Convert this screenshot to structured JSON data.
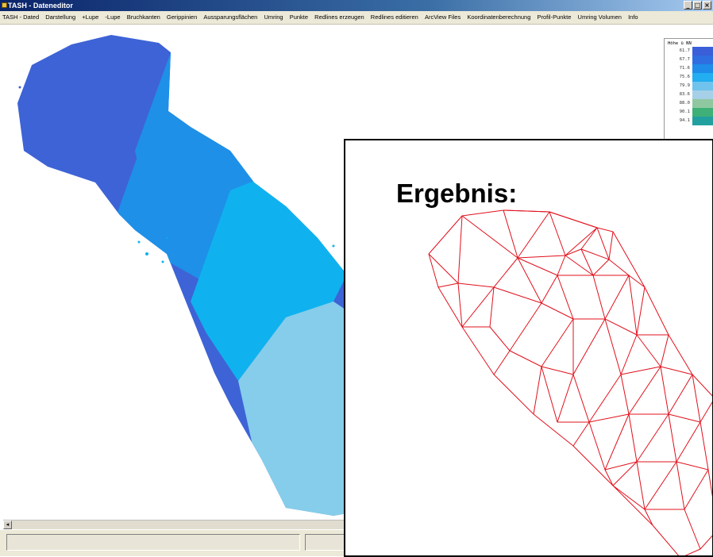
{
  "window": {
    "title": "TASH - Dateneditor",
    "buttons": [
      "_",
      "□",
      "×"
    ]
  },
  "menu": [
    "TASH - Dated",
    "Darstellung",
    "+Lupe",
    "-Lupe",
    "Bruchkanten",
    "Gerippinien",
    "Aussparungsflächen",
    "Umring",
    "Punkte",
    "Redlines erzeugen",
    "Redlines editieren",
    "ArcView Files",
    "Koordinatenberechnung",
    "Profil-Punkte",
    "Umring Volumen",
    "Info"
  ],
  "legend": {
    "title": "Höhe ü NN",
    "rows": [
      {
        "value": "61.7",
        "color": "#3a5fd8"
      },
      {
        "value": "67.7",
        "color": "#2f6ee0"
      },
      {
        "value": "71.6",
        "color": "#1e8ce8"
      },
      {
        "value": "75.6",
        "color": "#22aef0"
      },
      {
        "value": "79.9",
        "color": "#6fc3ec"
      },
      {
        "value": "83.6",
        "color": "#a6cfe8"
      },
      {
        "value": "88.0",
        "color": "#8fc8a0"
      },
      {
        "value": "90.1",
        "color": "#3fb078"
      },
      {
        "value": "94.1",
        "color": "#22a0a0"
      }
    ]
  },
  "scrollbar": {
    "left_arrow": "◂"
  },
  "overlay": {
    "heading": "Ergebnis:",
    "mesh_color": "#e0101c"
  },
  "terrain_colors": [
    "#3e63d6",
    "#1e90e8",
    "#0fb2ee",
    "#85cdea"
  ]
}
